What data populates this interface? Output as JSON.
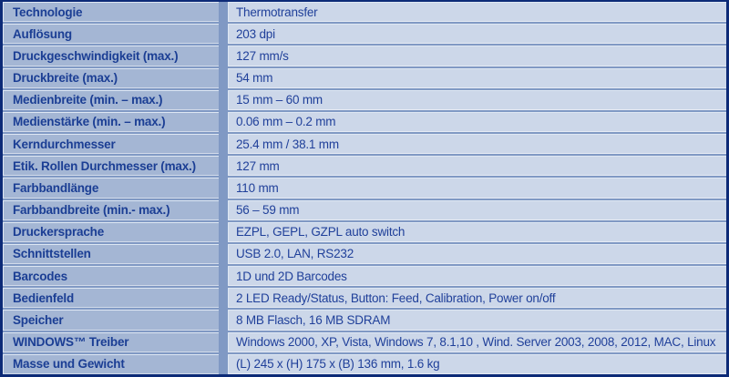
{
  "table": {
    "rows": [
      {
        "label": "Technologie",
        "value": "Thermotransfer"
      },
      {
        "label": "Auflösung",
        "value": "203 dpi"
      },
      {
        "label": "Druckgeschwindigkeit (max.)",
        "value": "127 mm/s"
      },
      {
        "label": "Druckbreite (max.)",
        "value": "54 mm"
      },
      {
        "label": "Medienbreite (min. – max.)",
        "value": "15 mm – 60 mm"
      },
      {
        "label": "Medienstärke (min. – max.)",
        "value": "0.06 mm – 0.2 mm"
      },
      {
        "label": "Kerndurchmesser",
        "value": "25.4 mm / 38.1 mm"
      },
      {
        "label": "Etik. Rollen Durchmesser (max.)",
        "value": "127 mm"
      },
      {
        "label": "Farbbandlänge",
        "value": "110 mm"
      },
      {
        "label": "Farbbandbreite (min.- max.)",
        "value": "56 – 59 mm"
      },
      {
        "label": "Druckersprache",
        "value": "EZPL, GEPL, GZPL auto switch"
      },
      {
        "label": "Schnittstellen",
        "value": "USB 2.0, LAN, RS232"
      },
      {
        "label": "Barcodes",
        "value": "1D und 2D Barcodes"
      },
      {
        "label": "Bedienfeld",
        "value": "2 LED Ready/Status, Button: Feed, Calibration, Power on/off"
      },
      {
        "label": "Speicher",
        "value": "8 MB Flasch, 16 MB SDRAM"
      },
      {
        "label": "WINDOWS™ Treiber",
        "value": "Windows 2000, XP, Vista, Windows 7, 8.1,10 , Wind. Server 2003, 2008, 2012, MAC, Linux"
      },
      {
        "label": "Masse und Gewicht",
        "value": "(L) 245 x (H) 175 x (B) 136 mm, 1.6 kg"
      }
    ]
  },
  "colors": {
    "border": "#0c2a77",
    "grid": "#8099c4",
    "label_bg": "#a4b6d4",
    "value_bg": "#ccd7e9",
    "label_text": "#1b3e94",
    "value_text": "#20409a",
    "edge_highlight": "#dee7f3"
  }
}
